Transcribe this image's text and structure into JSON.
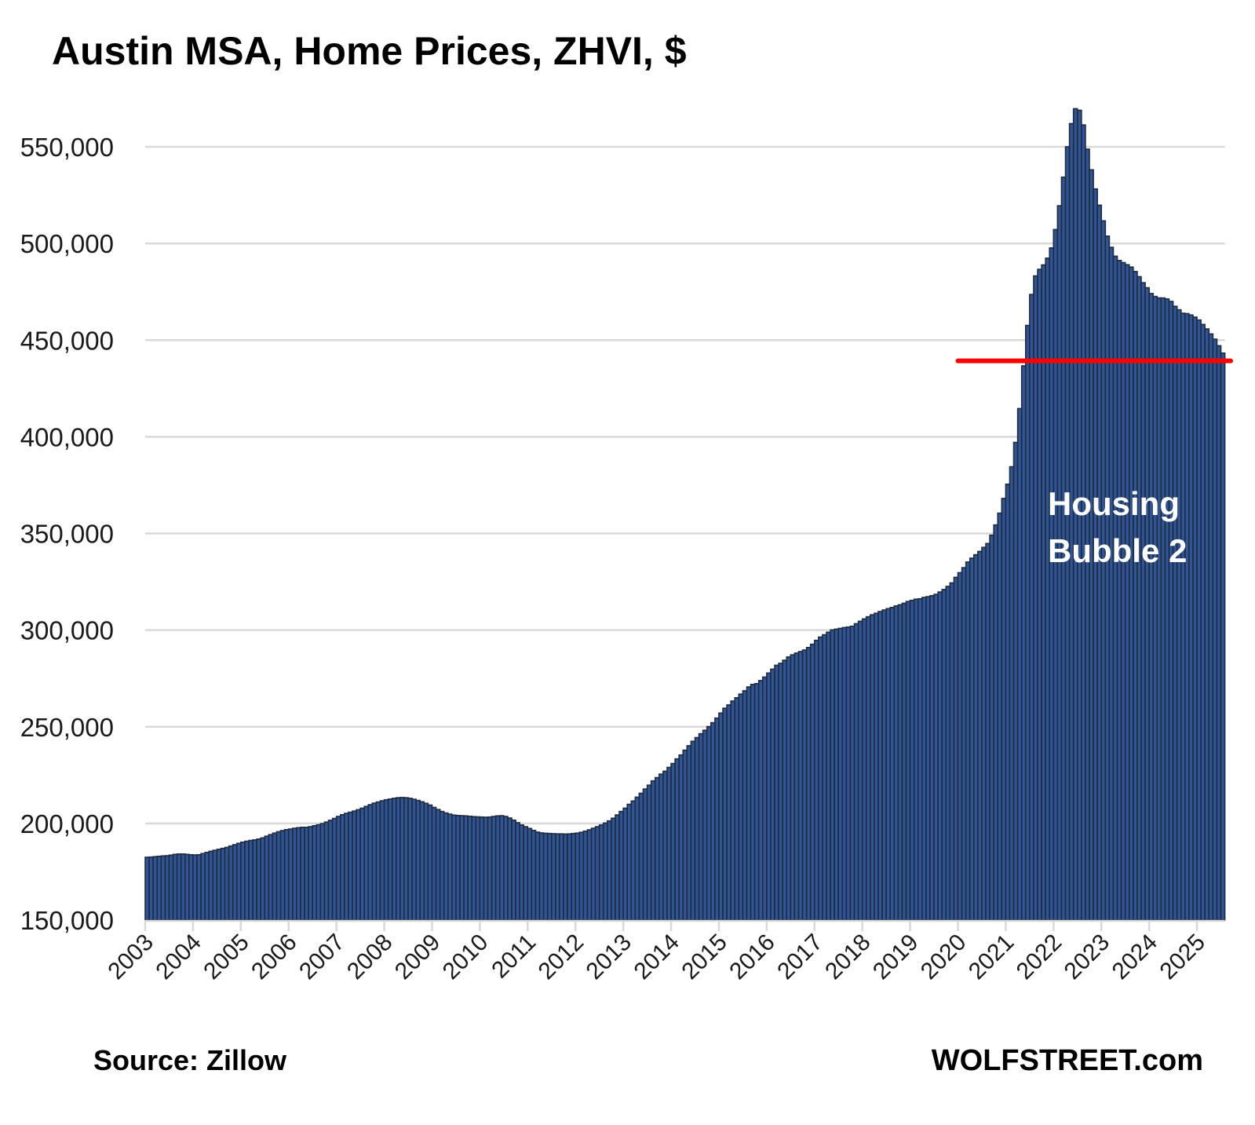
{
  "chart_data": {
    "type": "bar",
    "title": "Austin MSA, Home Prices, ZHVI, $",
    "xlabel": "",
    "ylabel": "",
    "ylim": [
      150000,
      575000
    ],
    "grid": true,
    "start": "2003-01",
    "frequency": "monthly",
    "y_ticks": [
      150000,
      200000,
      250000,
      300000,
      350000,
      400000,
      450000,
      500000,
      550000
    ],
    "y_tick_labels": [
      "150,000",
      "200,000",
      "250,000",
      "300,000",
      "350,000",
      "400,000",
      "450,000",
      "500,000",
      "550,000"
    ],
    "x_tick_labels": [
      "2003",
      "2004",
      "2005",
      "2006",
      "2007",
      "2008",
      "2009",
      "2010",
      "2011",
      "2012",
      "2013",
      "2014",
      "2015",
      "2016",
      "2017",
      "2018",
      "2019",
      "2020",
      "2021",
      "2022",
      "2023",
      "2024",
      "2025"
    ],
    "values": [
      182500,
      182600,
      182800,
      183000,
      183200,
      183300,
      183600,
      184000,
      184200,
      184200,
      184000,
      183800,
      183700,
      183800,
      184400,
      185000,
      185600,
      186100,
      186600,
      187100,
      187600,
      188300,
      189000,
      189700,
      190300,
      190800,
      191200,
      191500,
      191900,
      192500,
      193400,
      194200,
      195000,
      195700,
      196300,
      196800,
      197100,
      197500,
      197800,
      198000,
      198000,
      198300,
      198800,
      199300,
      199900,
      200700,
      201600,
      202600,
      203600,
      204500,
      205200,
      205800,
      206400,
      207100,
      207900,
      208800,
      209700,
      210500,
      211100,
      211700,
      212200,
      212600,
      213000,
      213300,
      213400,
      213300,
      213000,
      212500,
      211900,
      211200,
      210400,
      209500,
      208300,
      207200,
      206200,
      205400,
      204800,
      204300,
      204100,
      204000,
      203900,
      203700,
      203500,
      203400,
      203300,
      203200,
      203300,
      203600,
      203900,
      204000,
      203600,
      202800,
      201700,
      200400,
      199200,
      198300,
      197400,
      196400,
      195500,
      195100,
      194900,
      194800,
      194700,
      194600,
      194600,
      194500,
      194600,
      194800,
      195000,
      195400,
      196000,
      196700,
      197500,
      198300,
      199200,
      200200,
      201300,
      202700,
      204400,
      206200,
      207900,
      209900,
      211600,
      213600,
      215600,
      217800,
      219800,
      222000,
      223700,
      225500,
      227000,
      229000,
      231000,
      233400,
      235400,
      237900,
      240200,
      242500,
      244400,
      246400,
      248200,
      250100,
      252100,
      254500,
      257100,
      259600,
      261300,
      263300,
      265000,
      266900,
      268600,
      270600,
      271900,
      272300,
      273900,
      275700,
      277800,
      279800,
      281800,
      282800,
      284400,
      286100,
      287200,
      288100,
      288900,
      289700,
      291000,
      292700,
      294700,
      296400,
      297600,
      298900,
      300100,
      300500,
      300900,
      301300,
      301600,
      302000,
      303300,
      304600,
      305800,
      306900,
      307900,
      308700,
      309600,
      310400,
      311100,
      311700,
      312500,
      313100,
      313900,
      314800,
      315400,
      316000,
      316200,
      316900,
      317300,
      317800,
      318500,
      319700,
      321000,
      322600,
      324400,
      327300,
      329700,
      332300,
      335200,
      337200,
      339000,
      340700,
      342800,
      344800,
      349100,
      354400,
      360500,
      368100,
      375500,
      384500,
      397100,
      414600,
      436700,
      457600,
      473600,
      483200,
      486600,
      488900,
      492400,
      497700,
      507200,
      519500,
      534300,
      550000,
      562000,
      569700,
      568900,
      561300,
      548800,
      538100,
      528200,
      519800,
      511700,
      503800,
      498000,
      493400,
      491200,
      490100,
      489000,
      487800,
      485500,
      482800,
      479700,
      477100,
      474100,
      472600,
      471800,
      471800,
      471300,
      470000,
      467500,
      465700,
      463900,
      463700,
      463000,
      461900,
      460400,
      458100,
      455800,
      453200,
      450500,
      447100,
      443300
    ],
    "reference_line": {
      "value": 439300,
      "from": "2020-01",
      "color": "#ff0000"
    },
    "annotation": [
      "Housing",
      "Bubble 2"
    ],
    "colors": {
      "bar_fill": "#2f5597",
      "bar_outline": "#1f2a3c",
      "grid": "#d9d9d9"
    }
  },
  "footer": {
    "source": "Source: Zillow",
    "brand": "WOLFSTREET.com"
  }
}
